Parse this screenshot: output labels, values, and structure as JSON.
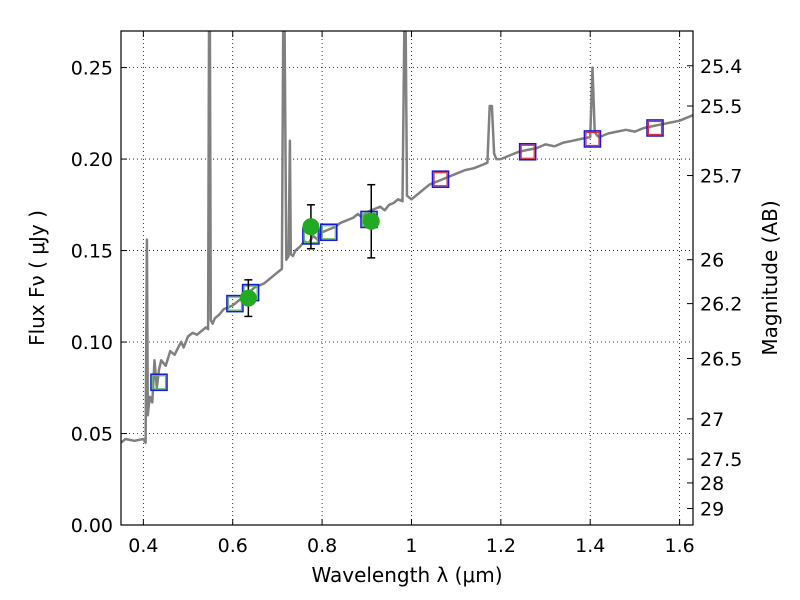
{
  "chart_data": {
    "type": "line",
    "xlabel": "Wavelength  λ (μm)",
    "ylabel": "Flux  Fν  ( μJy )",
    "ylabel_right": "Magnitude (AB)",
    "xlim": [
      0.35,
      1.63
    ],
    "ylim": [
      0.0,
      0.27
    ],
    "xticks": [
      0.4,
      0.6,
      0.8,
      1.0,
      1.2,
      1.4,
      1.6
    ],
    "xtick_labels": [
      "0.4",
      "0.6",
      "0.8",
      "1",
      "1.2",
      "1.4",
      "1.6"
    ],
    "yticks": [
      0.0,
      0.05,
      0.1,
      0.15,
      0.2,
      0.25
    ],
    "ytick_labels": [
      "0.00",
      "0.05",
      "0.10",
      "0.15",
      "0.20",
      "0.25"
    ],
    "right_ticks": [
      {
        "label": "25.4",
        "flux": 0.251
      },
      {
        "label": "25.5",
        "flux": 0.229
      },
      {
        "label": "25.7",
        "flux": 0.191
      },
      {
        "label": "26",
        "flux": 0.145
      },
      {
        "label": "26.2",
        "flux": 0.121
      },
      {
        "label": "26.5",
        "flux": 0.091
      },
      {
        "label": "27",
        "flux": 0.058
      },
      {
        "label": "27.5",
        "flux": 0.036
      },
      {
        "label": "28",
        "flux": 0.023
      },
      {
        "label": "29",
        "flux": 0.009
      }
    ],
    "grid": true,
    "colors": {
      "spectrum": "#808080",
      "measured": "#22aa22",
      "errorbar": "#000000",
      "box": "#1a1adc",
      "model_green": "#66bb66",
      "model_red": "#e03030"
    },
    "spectrum": {
      "name": "",
      "x": [
        0.35,
        0.36,
        0.38,
        0.4,
        0.405,
        0.408,
        0.41,
        0.412,
        0.415,
        0.42,
        0.425,
        0.43,
        0.435,
        0.44,
        0.45,
        0.46,
        0.47,
        0.48,
        0.485,
        0.49,
        0.5,
        0.51,
        0.52,
        0.53,
        0.54,
        0.545,
        0.547,
        0.549,
        0.551,
        0.555,
        0.56,
        0.57,
        0.58,
        0.59,
        0.6,
        0.61,
        0.62,
        0.63,
        0.64,
        0.65,
        0.66,
        0.67,
        0.68,
        0.69,
        0.7,
        0.71,
        0.713,
        0.716,
        0.72,
        0.725,
        0.728,
        0.73,
        0.735,
        0.74,
        0.75,
        0.76,
        0.77,
        0.78,
        0.79,
        0.8,
        0.81,
        0.82,
        0.83,
        0.84,
        0.85,
        0.86,
        0.87,
        0.88,
        0.89,
        0.9,
        0.91,
        0.92,
        0.93,
        0.94,
        0.95,
        0.96,
        0.97,
        0.98,
        0.984,
        0.987,
        0.99,
        0.995,
        1.0,
        1.02,
        1.04,
        1.06,
        1.08,
        1.1,
        1.12,
        1.14,
        1.16,
        1.17,
        1.175,
        1.18,
        1.185,
        1.19,
        1.2,
        1.22,
        1.24,
        1.26,
        1.28,
        1.3,
        1.32,
        1.34,
        1.36,
        1.38,
        1.4,
        1.405,
        1.41,
        1.415,
        1.42,
        1.44,
        1.46,
        1.48,
        1.5,
        1.52,
        1.54,
        1.56,
        1.58,
        1.6,
        1.63
      ],
      "y": [
        0.045,
        0.047,
        0.046,
        0.047,
        0.045,
        0.156,
        0.06,
        0.065,
        0.07,
        0.067,
        0.09,
        0.075,
        0.085,
        0.09,
        0.087,
        0.095,
        0.093,
        0.098,
        0.1,
        0.097,
        0.103,
        0.105,
        0.104,
        0.106,
        0.108,
        0.107,
        0.27,
        0.27,
        0.112,
        0.11,
        0.113,
        0.115,
        0.118,
        0.119,
        0.12,
        0.122,
        0.124,
        0.126,
        0.128,
        0.13,
        0.131,
        0.132,
        0.134,
        0.136,
        0.138,
        0.14,
        0.27,
        0.27,
        0.145,
        0.147,
        0.21,
        0.148,
        0.147,
        0.15,
        0.152,
        0.155,
        0.154,
        0.158,
        0.156,
        0.16,
        0.161,
        0.162,
        0.163,
        0.165,
        0.166,
        0.167,
        0.168,
        0.17,
        0.168,
        0.171,
        0.172,
        0.173,
        0.174,
        0.172,
        0.175,
        0.176,
        0.178,
        0.177,
        0.27,
        0.27,
        0.18,
        0.179,
        0.178,
        0.182,
        0.186,
        0.188,
        0.19,
        0.192,
        0.194,
        0.195,
        0.197,
        0.198,
        0.229,
        0.229,
        0.203,
        0.2,
        0.2,
        0.202,
        0.204,
        0.205,
        0.206,
        0.208,
        0.207,
        0.209,
        0.21,
        0.211,
        0.212,
        0.25,
        0.215,
        0.213,
        0.212,
        0.214,
        0.215,
        0.216,
        0.215,
        0.217,
        0.218,
        0.219,
        0.22,
        0.221,
        0.224
      ]
    },
    "measured": {
      "name": "",
      "points": [
        {
          "x": 0.635,
          "y": 0.124,
          "yerr": 0.01
        },
        {
          "x": 0.775,
          "y": 0.163,
          "yerr": 0.012
        },
        {
          "x": 0.91,
          "y": 0.166,
          "yerr": 0.02
        }
      ]
    },
    "model_bands": {
      "name": "",
      "points": [
        {
          "x": 0.435,
          "y": 0.078,
          "marker": "green"
        },
        {
          "x": 0.605,
          "y": 0.121,
          "marker": "green"
        },
        {
          "x": 0.64,
          "y": 0.127,
          "marker": "green"
        },
        {
          "x": 0.775,
          "y": 0.158,
          "marker": "green"
        },
        {
          "x": 0.815,
          "y": 0.16,
          "marker": "green"
        },
        {
          "x": 0.905,
          "y": 0.167,
          "marker": "green"
        },
        {
          "x": 1.065,
          "y": 0.189,
          "marker": "red"
        },
        {
          "x": 1.26,
          "y": 0.204,
          "marker": "red"
        },
        {
          "x": 1.405,
          "y": 0.211,
          "marker": "red"
        },
        {
          "x": 1.545,
          "y": 0.217,
          "marker": "red"
        }
      ]
    }
  }
}
